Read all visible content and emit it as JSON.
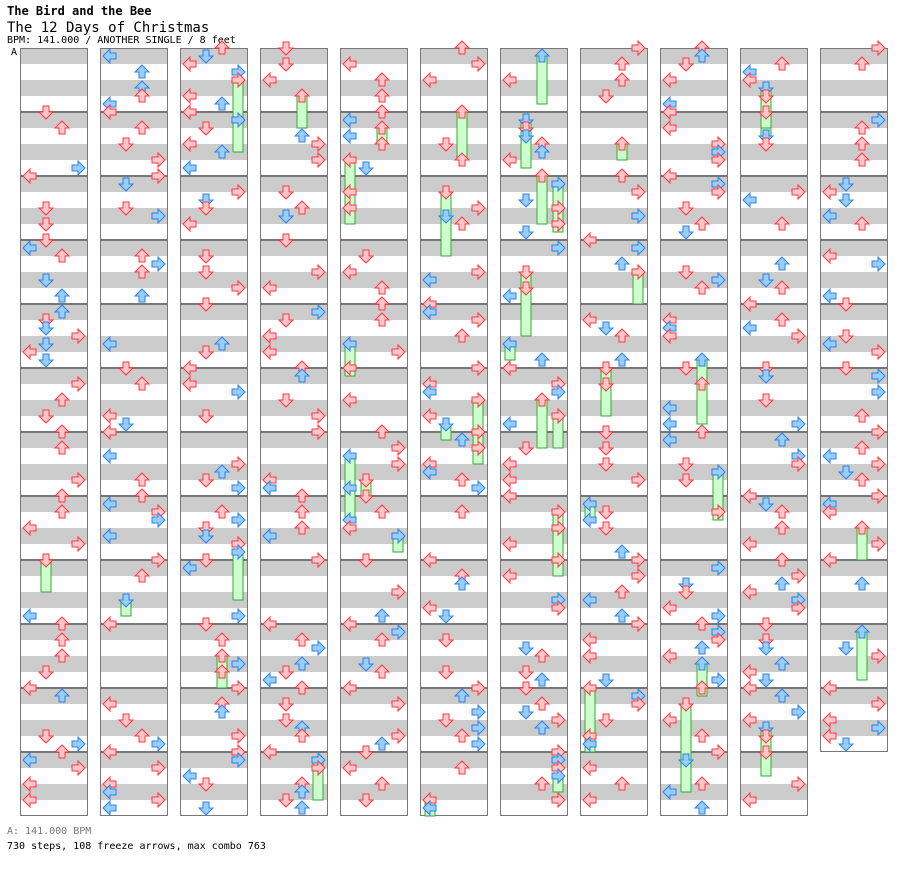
{
  "header": {
    "artist": "The Bird and the Bee",
    "title": "The 12 Days of Christmas",
    "meta": "BPM: 141.000 / ANOTHER SINGLE / 8 feet"
  },
  "segment_label": "A",
  "footer": {
    "bpm": "A: 141.000 BPM",
    "stats": "730 steps, 108 freeze arrows, max combo 763"
  },
  "chart_layout": {
    "columns": 11,
    "measures_per_column": 12,
    "total_measures": 131
  },
  "colors": {
    "quarter": "#ff3344",
    "quarter_fill": "#ffc8c8",
    "eighth": "#2b82e0",
    "eighth_fill": "#99ccff",
    "freeze": "#33aa33",
    "freeze_fill": "#ccffcc",
    "stripe": "#cccccc",
    "border": "#777777"
  }
}
